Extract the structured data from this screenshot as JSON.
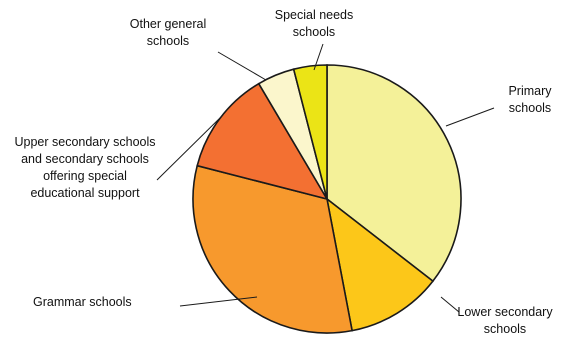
{
  "chart_data": {
    "type": "pie",
    "title": "",
    "start_angle_deg": 0,
    "direction": "clockwise",
    "slices": [
      {
        "label_lines": [
          "Primary",
          "schools"
        ],
        "value": 35.5,
        "color": "#f4f199"
      },
      {
        "label_lines": [
          "Lower secondary",
          "schools"
        ],
        "value": 11.5,
        "color": "#fcc719"
      },
      {
        "label_lines": [
          "Grammar schools"
        ],
        "value": 32.0,
        "color": "#f7992d"
      },
      {
        "label_lines": [
          "Upper secondary schools",
          "and secondary schools",
          "offering special",
          "educational support"
        ],
        "value": 12.5,
        "color": "#f37032"
      },
      {
        "label_lines": [
          "Other general",
          "schools"
        ],
        "value": 4.5,
        "color": "#fbf6cc"
      },
      {
        "label_lines": [
          "Special needs",
          "schools"
        ],
        "value": 4.0,
        "color": "#ebe416"
      }
    ]
  }
}
